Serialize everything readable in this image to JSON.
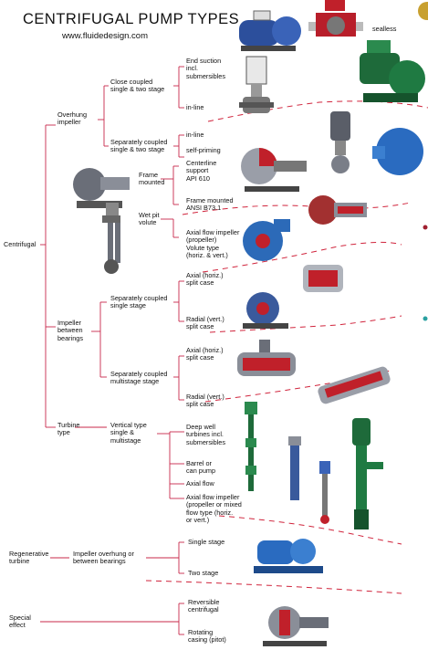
{
  "title": "CENTRIFUGAL PUMP TYPES",
  "url": "www.fluidedesign.com",
  "labels": {
    "sealless": "sealless",
    "centrifugal": "Centrifugal",
    "overhung": [
      "Overhung",
      "impeller"
    ],
    "close_coupled": [
      "Close coupled",
      "single & two stage"
    ],
    "end_suction": [
      "End suction",
      "incl.",
      "submersibles"
    ],
    "inline_1": "in-line",
    "separately_coupled_1": [
      "Separately coupled",
      "single & two stage"
    ],
    "inline_2": "in-line",
    "self_priming": "self-priming",
    "frame_mounted": [
      "Frame",
      "mounted"
    ],
    "centerline": [
      "Centerline",
      "support",
      "API 610"
    ],
    "frame_ansi": [
      "Frame mounted",
      "ANSI B73.1"
    ],
    "wet_pit": [
      "Wet pit",
      "volute"
    ],
    "axial_flow_prop": [
      "Axial flow impeller",
      "(propeller)",
      "Volute type",
      "(horiz. & vert.)"
    ],
    "impeller_between": [
      "Impeller",
      "between",
      "bearings"
    ],
    "sep_single": [
      "Separately coupled",
      "single stage"
    ],
    "axial_split_1": [
      "Axial (horiz.)",
      "split case"
    ],
    "radial_split_1": [
      "Radial (vert.)",
      "split case"
    ],
    "sep_multi": [
      "Separately coupled",
      "multistage stage"
    ],
    "axial_split_2": [
      "Axial (horiz.)",
      "split case"
    ],
    "radial_split_2": [
      "Radial (vert.)",
      "split case"
    ],
    "turbine": [
      "Turbine",
      "type"
    ],
    "vertical_type": [
      "Vertical type",
      "single &",
      "multistage"
    ],
    "deep_well": [
      "Deep well",
      "turbines incl.",
      "submersibles"
    ],
    "barrel": [
      "Barrel or",
      "can pump"
    ],
    "axial_flow": "Axial flow",
    "axial_mixed": [
      "Axial flow impeller",
      "(propeller or mixed",
      "flow type (horiz.",
      "or vert.)"
    ],
    "regenerative": [
      "Regenerative",
      "turbine"
    ],
    "impeller_overhung_between": [
      "Impeller overhung or",
      "between bearings"
    ],
    "single_stage": "Single stage",
    "two_stage": "Two stage",
    "special": [
      "Special",
      "effect"
    ],
    "reversible": [
      "Reversible",
      "centrifugal"
    ],
    "rotating": [
      "Rotating",
      "casing (pitot)"
    ]
  },
  "colors": {
    "line": "#c8284a",
    "dash": "#d0243c",
    "pump_blue": "#2c4f9c",
    "pump_green": "#1e6a3a",
    "pump_red": "#c0202a",
    "pump_gray": "#7a7e88"
  }
}
